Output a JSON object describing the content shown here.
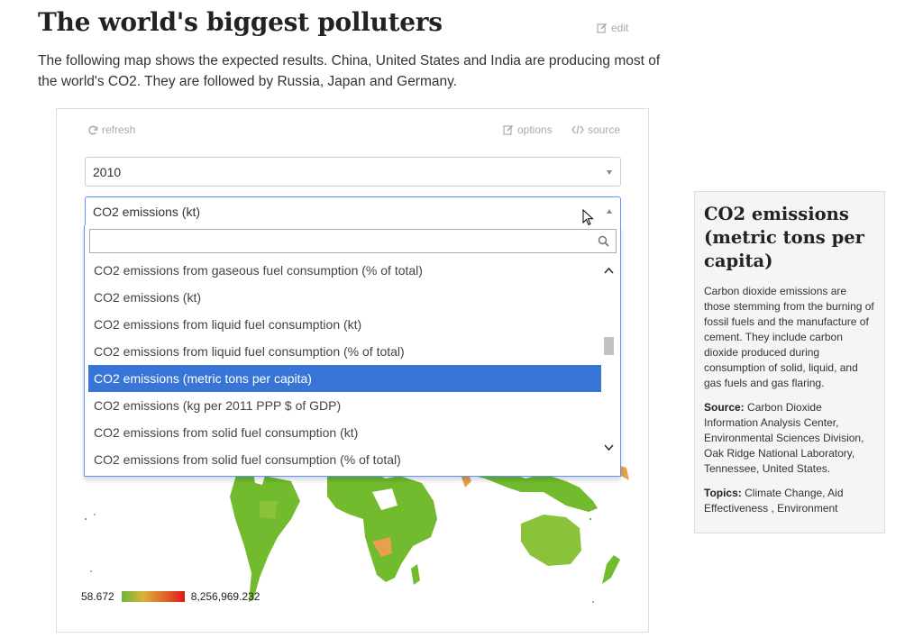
{
  "header": {
    "title": "The world's biggest polluters",
    "edit_label": "edit",
    "intro": "The following map shows the expected results. China, United States and India are producing most of the world's CO2. They are followed by Russia, Japan and Germany."
  },
  "widget": {
    "refresh_label": "refresh",
    "options_label": "options",
    "source_label": "source",
    "year_select": {
      "value": "2010"
    },
    "indicator_select": {
      "value": "CO2 emissions (kt)"
    },
    "dropdown": {
      "search_value": "",
      "items": [
        "CO2 emissions from gaseous fuel consumption (% of total)",
        "CO2 emissions (kt)",
        "CO2 emissions from liquid fuel consumption (kt)",
        "CO2 emissions from liquid fuel consumption (% of total)",
        "CO2 emissions (metric tons per capita)",
        "CO2 emissions (kg per 2011 PPP $ of GDP)",
        "CO2 emissions from solid fuel consumption (kt)",
        "CO2 emissions from solid fuel consumption (% of total)"
      ],
      "highlighted_index": 4
    },
    "legend": {
      "min": "58.672",
      "max": "8,256,969.232"
    },
    "colors": {
      "low": "#6cb83a",
      "mid": "#e06a2a",
      "high": "#e01818",
      "highlight": "#3875d7"
    }
  },
  "sidebar": {
    "title": "CO2 emissions (metric tons per capita)",
    "description": "Carbon dioxide emissions are those stemming from the burning of fossil fuels and the manufacture of cement. They include carbon dioxide produced during consumption of solid, liquid, and gas fuels and gas flaring.",
    "source_label": "Source:",
    "source_text": "Carbon Dioxide Information Analysis Center, Environmental Sciences Division, Oak Ridge National Laboratory, Tennessee, United States.",
    "topics_label": "Topics:",
    "topics_text": "Climate Change, Aid Effectiveness , Environment"
  }
}
